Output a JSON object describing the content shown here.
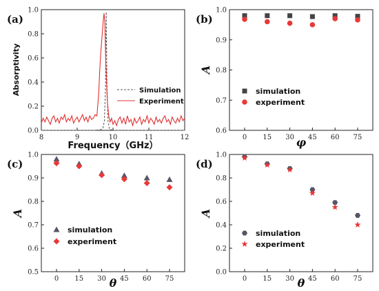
{
  "chart_data": [
    {
      "panel": "(a)",
      "type": "line",
      "xlabel": "Frequency（GHz）",
      "ylabel": "Absorptivity",
      "xlim": [
        8,
        12
      ],
      "ylim": [
        0,
        1.0
      ],
      "xticks": [
        "8",
        "9",
        "10",
        "11",
        "12"
      ],
      "yticks": [
        "0.0",
        "0.2",
        "0.4",
        "0.6",
        "0.8",
        "1.0"
      ],
      "legend_position": "bottom-right",
      "series": [
        {
          "name": "Simulation",
          "style": "dashed",
          "color": "#555555",
          "x": [
            8.0,
            9.5,
            9.65,
            9.72,
            9.76,
            9.79,
            9.81,
            9.83,
            9.86,
            9.9,
            10.0,
            12.0
          ],
          "y": [
            0.0,
            0.0,
            0.005,
            0.02,
            0.08,
            0.35,
            0.98,
            0.4,
            0.08,
            0.01,
            0.0,
            0.0
          ]
        },
        {
          "name": "Experiment",
          "style": "solid",
          "color": "#e03030",
          "x": [
            8.0,
            8.05,
            8.1,
            8.15,
            8.2,
            8.25,
            8.3,
            8.35,
            8.4,
            8.45,
            8.5,
            8.55,
            8.6,
            8.65,
            8.7,
            8.75,
            8.8,
            8.85,
            8.9,
            8.95,
            9.0,
            9.05,
            9.1,
            9.15,
            9.2,
            9.25,
            9.3,
            9.35,
            9.4,
            9.45,
            9.5,
            9.55,
            9.6,
            9.63,
            9.66,
            9.7,
            9.73,
            9.75,
            9.77,
            9.8,
            9.84,
            9.88,
            9.92,
            9.96,
            10.0,
            10.05,
            10.1,
            10.15,
            10.2,
            10.25,
            10.3,
            10.35,
            10.4,
            10.45,
            10.5,
            10.55,
            10.6,
            10.65,
            10.7,
            10.75,
            10.8,
            10.85,
            10.9,
            10.95,
            11.0,
            11.05,
            11.1,
            11.15,
            11.2,
            11.25,
            11.3,
            11.35,
            11.4,
            11.45,
            11.5,
            11.55,
            11.6,
            11.65,
            11.7,
            11.75,
            11.8,
            11.85,
            11.9,
            11.95,
            12.0
          ],
          "y": [
            0.06,
            0.1,
            0.07,
            0.11,
            0.08,
            0.05,
            0.1,
            0.12,
            0.07,
            0.1,
            0.06,
            0.11,
            0.09,
            0.13,
            0.07,
            0.1,
            0.08,
            0.12,
            0.06,
            0.09,
            0.11,
            0.07,
            0.1,
            0.13,
            0.08,
            0.11,
            0.07,
            0.12,
            0.09,
            0.1,
            0.13,
            0.12,
            0.3,
            0.5,
            0.65,
            0.8,
            0.92,
            0.97,
            0.9,
            0.55,
            0.25,
            0.12,
            0.07,
            0.1,
            0.05,
            0.08,
            0.04,
            0.09,
            0.11,
            0.06,
            0.1,
            0.05,
            0.12,
            0.07,
            0.09,
            0.04,
            0.1,
            0.06,
            0.08,
            0.11,
            0.05,
            0.09,
            0.07,
            0.12,
            0.06,
            0.1,
            0.08,
            0.05,
            0.11,
            0.07,
            0.09,
            0.06,
            0.1,
            0.12,
            0.07,
            0.09,
            0.05,
            0.11,
            0.08,
            0.06,
            0.1,
            0.07,
            0.12,
            0.08,
            0.1
          ]
        }
      ]
    },
    {
      "panel": "(b)",
      "type": "scatter",
      "xlabel": "φ",
      "ylabel": "A",
      "categories": [
        "0",
        "15",
        "30",
        "45",
        "60",
        "75"
      ],
      "ylim": [
        0.6,
        1.0
      ],
      "yticks": [
        "0.6",
        "0.7",
        "0.8",
        "0.9",
        "1.0"
      ],
      "legend_position": "bottom-left",
      "series": [
        {
          "name": "simulation",
          "marker": "square",
          "color": "#444444",
          "values": [
            0.98,
            0.98,
            0.98,
            0.977,
            0.98,
            0.978
          ]
        },
        {
          "name": "experiment",
          "marker": "circle",
          "color": "#e83838",
          "values": [
            0.968,
            0.96,
            0.955,
            0.95,
            0.97,
            0.966
          ]
        }
      ]
    },
    {
      "panel": "(c)",
      "type": "scatter",
      "xlabel": "θ",
      "ylabel": "A",
      "categories": [
        "0",
        "15",
        "30",
        "45",
        "60",
        "75"
      ],
      "ylim": [
        0.5,
        1.0
      ],
      "yticks": [
        "0.5",
        "0.6",
        "0.7",
        "0.8",
        "0.9",
        "1.0"
      ],
      "legend_position": "bottom-left",
      "series": [
        {
          "name": "simulation",
          "marker": "triangle",
          "color": "#555566",
          "values": [
            0.98,
            0.96,
            0.92,
            0.91,
            0.9,
            0.893
          ]
        },
        {
          "name": "experiment",
          "marker": "diamond",
          "color": "#e83838",
          "values": [
            0.963,
            0.95,
            0.912,
            0.895,
            0.878,
            0.86
          ]
        }
      ]
    },
    {
      "panel": "(d)",
      "type": "scatter",
      "xlabel": "θ",
      "ylabel": "A",
      "categories": [
        "0",
        "15",
        "30",
        "45",
        "60",
        "75"
      ],
      "ylim": [
        0.0,
        1.0
      ],
      "yticks": [
        "0.0",
        "0.2",
        "0.4",
        "0.6",
        "0.8",
        "1.0"
      ],
      "legend_position": "bottom-left",
      "series": [
        {
          "name": "simulation",
          "marker": "hexagon",
          "color": "#555566",
          "values": [
            0.98,
            0.92,
            0.88,
            0.7,
            0.59,
            0.48
          ]
        },
        {
          "name": "experiment",
          "marker": "star",
          "color": "#e83838",
          "values": [
            0.97,
            0.91,
            0.87,
            0.67,
            0.55,
            0.4
          ]
        }
      ]
    }
  ]
}
